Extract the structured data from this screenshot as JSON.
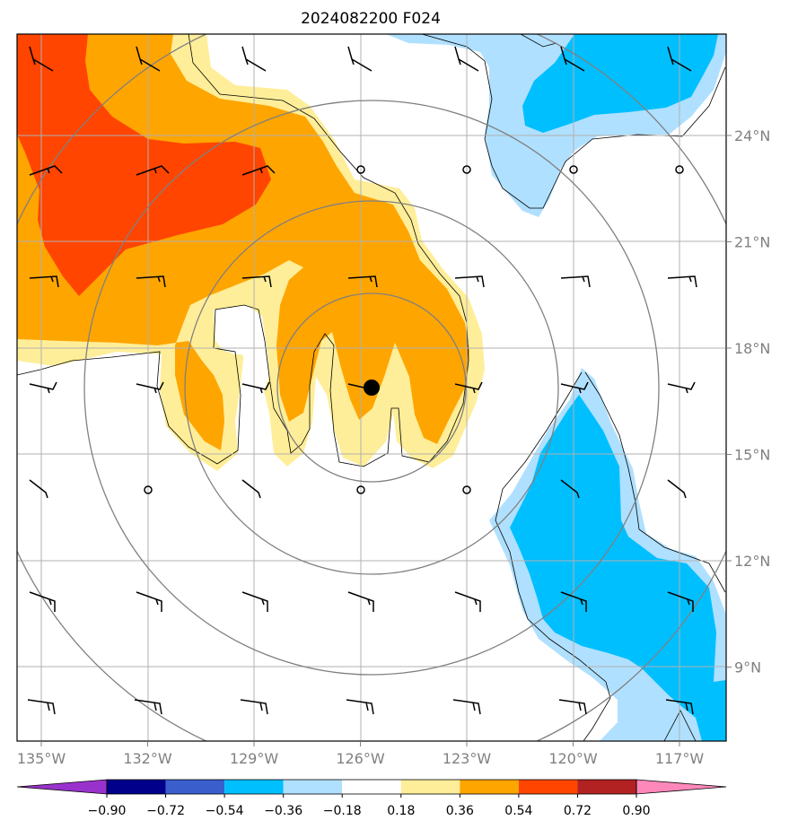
{
  "title": "2024082200 F024",
  "map": {
    "lon_ticks": [
      {
        "value": -135,
        "label": "135°W"
      },
      {
        "value": -132,
        "label": "132°W"
      },
      {
        "value": -129,
        "label": "129°W"
      },
      {
        "value": -126,
        "label": "126°W"
      },
      {
        "value": -123,
        "label": "123°W"
      },
      {
        "value": -120,
        "label": "120°W"
      },
      {
        "value": -117,
        "label": "117°W"
      }
    ],
    "lat_ticks": [
      {
        "value": 24,
        "label": "24°N"
      },
      {
        "value": 21,
        "label": "21°N"
      },
      {
        "value": 18,
        "label": "18°N"
      },
      {
        "value": 15,
        "label": "15°N"
      },
      {
        "value": 12,
        "label": "12°N"
      },
      {
        "value": 9,
        "label": "9°N"
      }
    ],
    "center_marker": {
      "lon": -125.7,
      "lat": 16.9
    }
  },
  "colorbar": {
    "levels": [
      "-0.90",
      "-0.72",
      "-0.54",
      "-0.36",
      "-0.18",
      "0.18",
      "0.36",
      "0.54",
      "0.72",
      "0.90"
    ],
    "colors": [
      "#9932cc",
      "#00008b",
      "#3a5fcd",
      "#00bfff",
      "#b0e0ff",
      "#ffffff",
      "#ffee99",
      "#ffa500",
      "#ff4500",
      "#b22222",
      "#ff88bb"
    ]
  }
}
